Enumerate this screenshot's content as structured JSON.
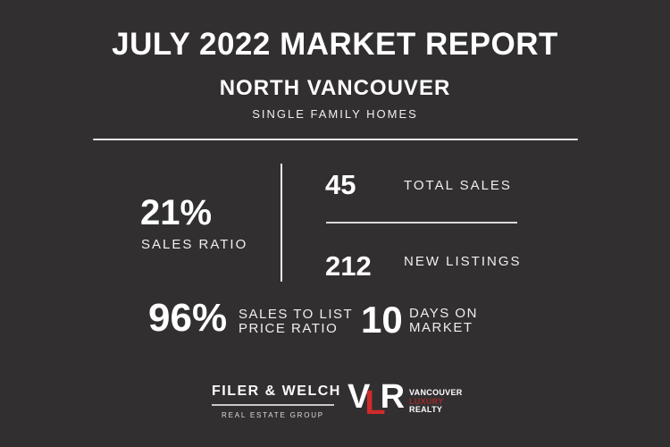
{
  "colors": {
    "background": "#322F31",
    "text_primary": "#FFFFFF",
    "text_secondary": "#EFEFEF",
    "divider": "#E8E8E8",
    "vlr_red": "#D22B2B",
    "vlr_luxury_red": "#9C2B28"
  },
  "header": {
    "title": "JULY 2022 MARKET REPORT",
    "region": "NORTH VANCOUVER",
    "segment": "SINGLE FAMILY HOMES"
  },
  "stats": {
    "sales_ratio": {
      "value": "21%",
      "label": "SALES RATIO"
    },
    "total_sales": {
      "value": "45",
      "label": "TOTAL SALES"
    },
    "new_listings": {
      "value": "212",
      "label": "NEW LISTINGS"
    },
    "sales_to_list_price_ratio": {
      "value": "96%",
      "label_line1": "SALES TO LIST",
      "label_line2": "PRICE RATIO"
    },
    "days_on_market": {
      "value": "10",
      "label_line1": "DAYS ON",
      "label_line2": "MARKET"
    }
  },
  "footer": {
    "filer_welch": {
      "name": "FILER & WELCH",
      "tagline": "REAL ESTATE GROUP"
    },
    "vlr": {
      "letter_v": "V",
      "letter_l": "L",
      "letter_r": "R",
      "line1": "VANCOUVER",
      "line2": "LUXURY",
      "line3": "REALTY"
    }
  }
}
